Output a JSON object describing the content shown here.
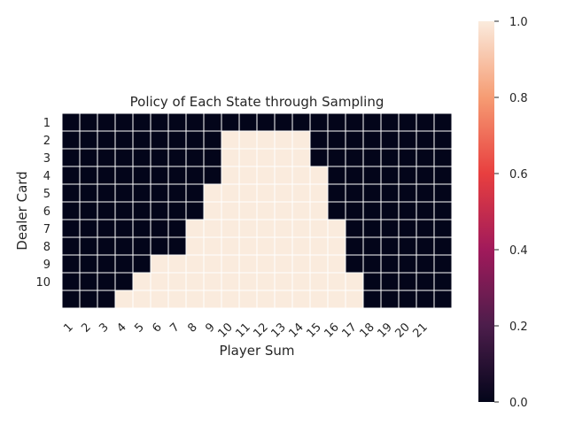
{
  "chart_data": {
    "type": "heatmap",
    "title": "Policy of Each State through Sampling",
    "xlabel": "Player Sum",
    "ylabel": "Dealer Card",
    "x_tick_labels": [
      "1",
      "2",
      "3",
      "4",
      "5",
      "6",
      "7",
      "8",
      "9",
      "10",
      "11",
      "12",
      "13",
      "14",
      "15",
      "16",
      "17",
      "18",
      "19",
      "20",
      "21"
    ],
    "y_tick_labels": [
      "1",
      "2",
      "3",
      "4",
      "5",
      "6",
      "7",
      "8",
      "9",
      "10"
    ],
    "grid": true,
    "legend": "none",
    "colorbar": {
      "position": "right",
      "range": [
        0,
        1
      ],
      "ticks": [
        "0.0",
        "0.2",
        "0.4",
        "0.6",
        "0.8",
        "1.0"
      ],
      "colormap": "rocket",
      "stops": [
        "#03051a",
        "#4c1d4b",
        "#a11a5b",
        "#e83f3f",
        "#f69c73",
        "#faebdd"
      ]
    },
    "values": [
      [
        0,
        0,
        0,
        0,
        0,
        0,
        0,
        0,
        0,
        0,
        0,
        0,
        0,
        0,
        0,
        0,
        0,
        0,
        0,
        0,
        0,
        0
      ],
      [
        0,
        0,
        0,
        0,
        0,
        0,
        0,
        0,
        0,
        1,
        1,
        1,
        1,
        1,
        0,
        0,
        0,
        0,
        0,
        0,
        0,
        0
      ],
      [
        0,
        0,
        0,
        0,
        0,
        0,
        0,
        0,
        0,
        1,
        1,
        1,
        1,
        1,
        0,
        0,
        0,
        0,
        0,
        0,
        0,
        0
      ],
      [
        0,
        0,
        0,
        0,
        0,
        0,
        0,
        0,
        0,
        1,
        1,
        1,
        1,
        1,
        1,
        0,
        0,
        0,
        0,
        0,
        0,
        0
      ],
      [
        0,
        0,
        0,
        0,
        0,
        0,
        0,
        0,
        1,
        1,
        1,
        1,
        1,
        1,
        1,
        0,
        0,
        0,
        0,
        0,
        0,
        0
      ],
      [
        0,
        0,
        0,
        0,
        0,
        0,
        0,
        0,
        1,
        1,
        1,
        1,
        1,
        1,
        1,
        0,
        0,
        0,
        0,
        0,
        0,
        0
      ],
      [
        0,
        0,
        0,
        0,
        0,
        0,
        0,
        1,
        1,
        1,
        1,
        1,
        1,
        1,
        1,
        1,
        0,
        0,
        0,
        0,
        0,
        0
      ],
      [
        0,
        0,
        0,
        0,
        0,
        0,
        0,
        1,
        1,
        1,
        1,
        1,
        1,
        1,
        1,
        1,
        0,
        0,
        0,
        0,
        0,
        0
      ],
      [
        0,
        0,
        0,
        0,
        0,
        1,
        1,
        1,
        1,
        1,
        1,
        1,
        1,
        1,
        1,
        1,
        0,
        0,
        0,
        0,
        0,
        0
      ],
      [
        0,
        0,
        0,
        0,
        1,
        1,
        1,
        1,
        1,
        1,
        1,
        1,
        1,
        1,
        1,
        1,
        1,
        0,
        0,
        0,
        0,
        0
      ],
      [
        0,
        0,
        0,
        1,
        1,
        1,
        1,
        1,
        1,
        1,
        1,
        1,
        1,
        1,
        1,
        1,
        1,
        0,
        0,
        0,
        0,
        0
      ]
    ]
  }
}
